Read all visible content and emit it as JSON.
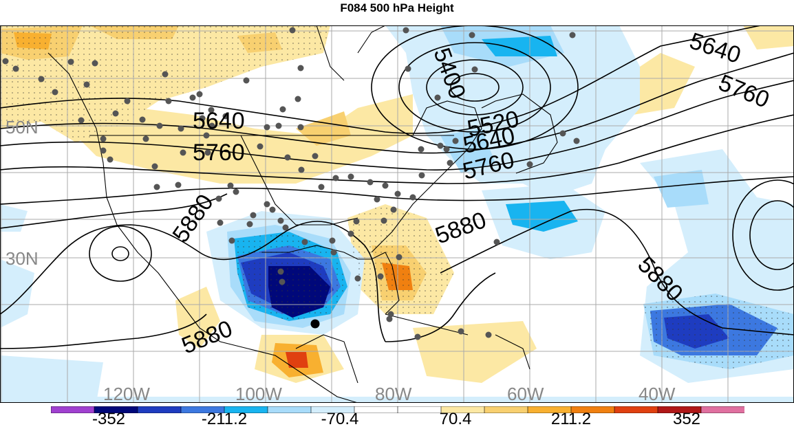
{
  "title": "F084 500 hPa Height",
  "lat_labels": [
    "50N",
    "30N"
  ],
  "lon_labels": [
    "120W",
    "100W",
    "80W",
    "60W",
    "40W"
  ],
  "contour_labels": [
    "5640",
    "5400",
    "5520",
    "5640",
    "5760",
    "5760",
    "5640",
    "5760",
    "5880",
    "5880",
    "5880",
    "5880"
  ],
  "colorbar": {
    "labels": [
      "-352",
      "-211.2",
      "-70.4",
      "70.4",
      "211.2",
      "352"
    ],
    "colors": [
      "#a040d0",
      "#00087a",
      "#1e3cc0",
      "#3c78e0",
      "#18b4f0",
      "#a8dcfa",
      "#d4eefc",
      "#ffffff",
      "#ffffff",
      "#fce8a4",
      "#f8d070",
      "#f8b030",
      "#f08010",
      "#e04010",
      "#b01818",
      "#e070a0"
    ]
  }
}
